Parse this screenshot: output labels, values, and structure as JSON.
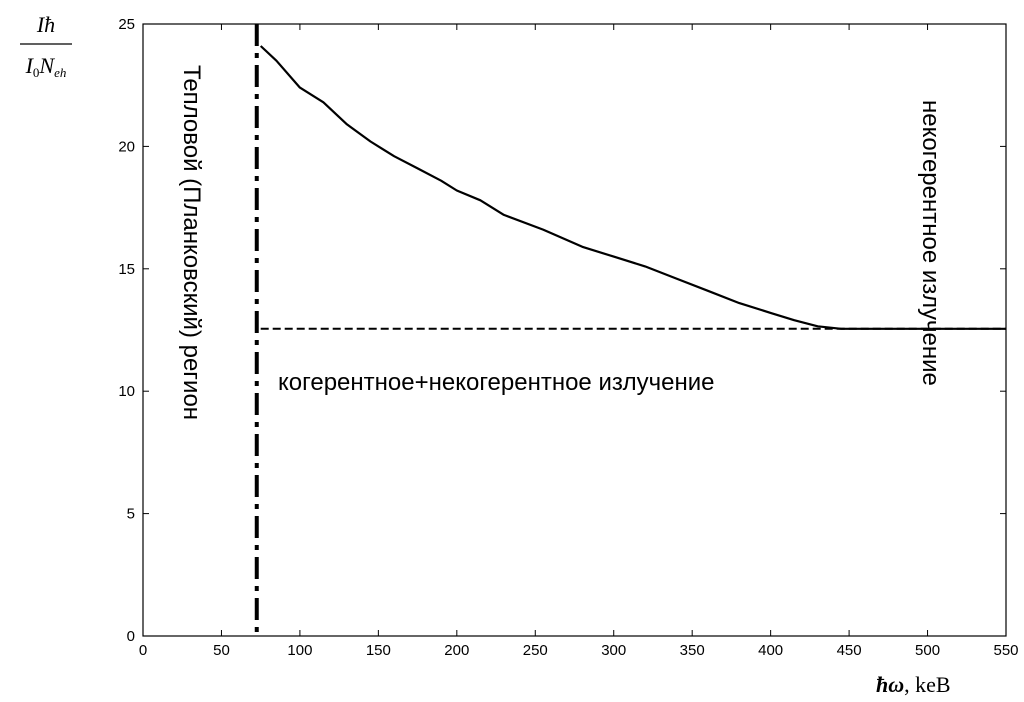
{
  "chart_data": {
    "type": "line",
    "xlim": [
      0,
      550
    ],
    "ylim": [
      0,
      25
    ],
    "xticks": [
      0,
      50,
      100,
      150,
      200,
      250,
      300,
      350,
      400,
      450,
      500,
      550
    ],
    "yticks": [
      0,
      5,
      10,
      15,
      20,
      25
    ],
    "grid": false,
    "xlabel": {
      "symbol": "ħω",
      "unit": ", keB"
    },
    "ylabel": {
      "numerator": "Iħ",
      "denominator_I": "I",
      "denominator_sub0": "0",
      "denominator_N": "N",
      "denominator_subeh": "eh"
    },
    "series": [
      {
        "style": "solid",
        "x": [
          75,
          85,
          100,
          115,
          130,
          145,
          160,
          175,
          190,
          200,
          215,
          230,
          255,
          280,
          300,
          320,
          340,
          360,
          380,
          400,
          415,
          430,
          445,
          460,
          550
        ],
        "y": [
          24.1,
          23.5,
          22.4,
          21.8,
          20.9,
          20.2,
          19.6,
          19.1,
          18.6,
          18.2,
          17.8,
          17.2,
          16.6,
          15.9,
          15.5,
          15.1,
          14.6,
          14.1,
          13.6,
          13.2,
          12.9,
          12.65,
          12.55,
          12.55,
          12.55
        ]
      },
      {
        "style": "dashed",
        "x": [
          75,
          550
        ],
        "y": [
          12.55,
          12.55
        ]
      }
    ],
    "vline": {
      "x": 72.5,
      "style": "dash-dot"
    },
    "annotations": {
      "thermal_region": "Тепловой (Планковский) регион",
      "coherent": "когерентное+некогерентное излучение",
      "incoherent": "некогерентное излучение"
    }
  }
}
